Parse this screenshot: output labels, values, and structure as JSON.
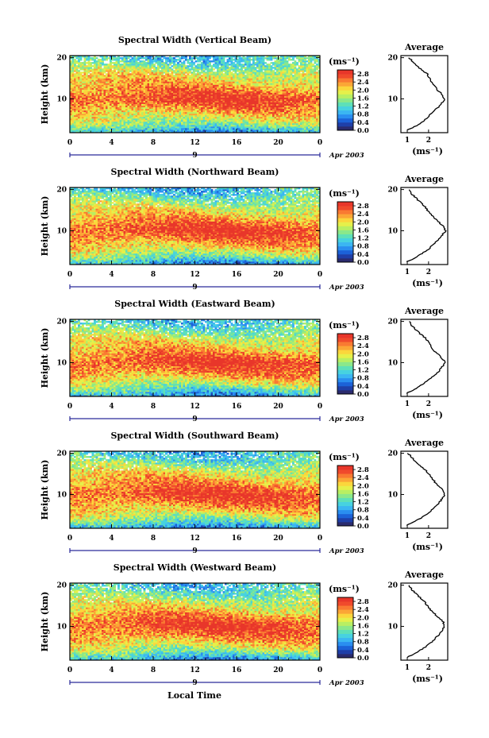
{
  "figure": {
    "xlabel": "Local Time",
    "date_label": "Apr 2003",
    "day_label": "9",
    "unit_label": "(ms⁻¹)",
    "average_title": "Average",
    "ylabel": "Height (km)"
  },
  "chart_data": [
    {
      "type": "heatmap",
      "title": "Spectral Width (Vertical Beam)",
      "xlabel": "Local Time",
      "ylabel": "Height (km)",
      "x_ticks": [
        "0",
        "4",
        "8",
        "12",
        "16",
        "20",
        "0"
      ],
      "xlim": [
        0,
        24
      ],
      "y_ticks": [
        "10",
        "20"
      ],
      "ylim": [
        1.8,
        20.5
      ],
      "colorbar": {
        "unit": "(ms⁻¹)",
        "ticks": [
          "2.8",
          "2.4",
          "2.0",
          "1.6",
          "1.2",
          "0.8",
          "0.4",
          "0.0"
        ],
        "range": [
          0.0,
          3.0
        ]
      },
      "profile": {
        "title": "Average",
        "xlabel": "(ms⁻¹)",
        "x_ticks": [
          "1",
          "2"
        ],
        "y_ticks": [
          "10",
          "20"
        ],
        "xlim": [
          0.7,
          2.9
        ],
        "height_km": [
          2.5,
          3,
          4,
          5,
          6,
          7,
          8,
          9,
          10,
          11,
          12,
          13,
          14,
          15,
          16,
          17,
          18,
          19,
          20
        ],
        "value": [
          1.0,
          1.25,
          1.6,
          1.85,
          2.05,
          2.25,
          2.45,
          2.62,
          2.75,
          2.65,
          2.45,
          2.3,
          2.15,
          2.05,
          1.95,
          1.7,
          1.45,
          1.25,
          1.1
        ]
      }
    },
    {
      "type": "heatmap",
      "title": "Spectral Width (Northward Beam)",
      "xlabel": "Local Time",
      "ylabel": "Height (km)",
      "x_ticks": [
        "0",
        "4",
        "8",
        "12",
        "16",
        "20",
        "0"
      ],
      "xlim": [
        0,
        24
      ],
      "y_ticks": [
        "10",
        "20"
      ],
      "ylim": [
        1.8,
        20.5
      ],
      "colorbar": {
        "unit": "(ms⁻¹)",
        "ticks": [
          "2.8",
          "2.4",
          "2.0",
          "1.6",
          "1.2",
          "0.8",
          "0.4",
          "0.0"
        ],
        "range": [
          0.0,
          3.0
        ]
      },
      "profile": {
        "title": "Average",
        "xlabel": "(ms⁻¹)",
        "x_ticks": [
          "1",
          "2"
        ],
        "y_ticks": [
          "10",
          "20"
        ],
        "xlim": [
          0.7,
          2.9
        ],
        "height_km": [
          2.5,
          3,
          4,
          5,
          6,
          7,
          8,
          9,
          10,
          11,
          12,
          13,
          14,
          15,
          16,
          17,
          18,
          19,
          20
        ],
        "value": [
          0.95,
          1.2,
          1.55,
          1.85,
          2.1,
          2.3,
          2.5,
          2.65,
          2.8,
          2.7,
          2.5,
          2.3,
          2.1,
          1.95,
          1.8,
          1.6,
          1.4,
          1.2,
          1.05
        ]
      }
    },
    {
      "type": "heatmap",
      "title": "Spectral Width (Eastward Beam)",
      "xlabel": "Local Time",
      "ylabel": "Height (km)",
      "x_ticks": [
        "0",
        "4",
        "8",
        "12",
        "16",
        "20",
        "0"
      ],
      "xlim": [
        0,
        24
      ],
      "y_ticks": [
        "10",
        "20"
      ],
      "ylim": [
        1.8,
        20.5
      ],
      "colorbar": {
        "unit": "(ms⁻¹)",
        "ticks": [
          "2.8",
          "2.4",
          "2.0",
          "1.6",
          "1.2",
          "0.8",
          "0.4",
          "0.0"
        ],
        "range": [
          0.0,
          3.0
        ]
      },
      "profile": {
        "title": "Average",
        "xlabel": "(ms⁻¹)",
        "x_ticks": [
          "1",
          "2"
        ],
        "y_ticks": [
          "10",
          "20"
        ],
        "xlim": [
          0.7,
          2.9
        ],
        "height_km": [
          2.5,
          3,
          4,
          5,
          6,
          7,
          8,
          9,
          10,
          11,
          12,
          13,
          14,
          15,
          16,
          17,
          18,
          19,
          20
        ],
        "value": [
          0.95,
          1.15,
          1.5,
          1.8,
          2.05,
          2.3,
          2.5,
          2.65,
          2.8,
          2.65,
          2.45,
          2.25,
          2.1,
          2.0,
          1.85,
          1.6,
          1.4,
          1.2,
          1.1
        ]
      }
    },
    {
      "type": "heatmap",
      "title": "Spectral Width (Southward Beam)",
      "xlabel": "Local Time",
      "ylabel": "Height (km)",
      "x_ticks": [
        "0",
        "4",
        "8",
        "12",
        "16",
        "20",
        "0"
      ],
      "xlim": [
        0,
        24
      ],
      "y_ticks": [
        "10",
        "20"
      ],
      "ylim": [
        1.8,
        20.5
      ],
      "colorbar": {
        "unit": "(ms⁻¹)",
        "ticks": [
          "2.8",
          "2.4",
          "2.0",
          "1.6",
          "1.2",
          "0.8",
          "0.4",
          "0.0"
        ],
        "range": [
          0.0,
          3.0
        ]
      },
      "profile": {
        "title": "Average",
        "xlabel": "(ms⁻¹)",
        "x_ticks": [
          "1",
          "2"
        ],
        "y_ticks": [
          "10",
          "20"
        ],
        "xlim": [
          0.7,
          2.9
        ],
        "height_km": [
          2.5,
          3,
          4,
          5,
          6,
          7,
          8,
          9,
          10,
          11,
          12,
          13,
          14,
          15,
          16,
          17,
          18,
          19,
          20
        ],
        "value": [
          0.95,
          1.2,
          1.55,
          1.85,
          2.1,
          2.3,
          2.5,
          2.65,
          2.75,
          2.7,
          2.5,
          2.3,
          2.15,
          2.0,
          1.85,
          1.6,
          1.4,
          1.2,
          1.05
        ]
      }
    },
    {
      "type": "heatmap",
      "title": "Spectral Width (Westward Beam)",
      "xlabel": "Local Time",
      "ylabel": "Height (km)",
      "x_ticks": [
        "0",
        "4",
        "8",
        "12",
        "16",
        "20",
        "0"
      ],
      "xlim": [
        0,
        24
      ],
      "y_ticks": [
        "10",
        "20"
      ],
      "ylim": [
        1.8,
        20.5
      ],
      "colorbar": {
        "unit": "(ms⁻¹)",
        "ticks": [
          "2.8",
          "2.4",
          "2.0",
          "1.6",
          "1.2",
          "0.8",
          "0.4",
          "0.0"
        ],
        "range": [
          0.0,
          3.0
        ]
      },
      "profile": {
        "title": "Average",
        "xlabel": "(ms⁻¹)",
        "x_ticks": [
          "1",
          "2"
        ],
        "y_ticks": [
          "10",
          "20"
        ],
        "xlim": [
          0.7,
          2.9
        ],
        "height_km": [
          2.5,
          3,
          4,
          5,
          6,
          7,
          8,
          9,
          10,
          11,
          12,
          13,
          14,
          15,
          16,
          17,
          18,
          19,
          20
        ],
        "value": [
          1.0,
          1.2,
          1.55,
          1.85,
          2.1,
          2.3,
          2.5,
          2.65,
          2.75,
          2.7,
          2.5,
          2.3,
          2.1,
          1.95,
          1.8,
          1.6,
          1.4,
          1.2,
          1.1
        ]
      }
    }
  ],
  "colors": {
    "colormap": [
      "#2b2b6e",
      "#1f3fa8",
      "#1c62d8",
      "#2a8ef0",
      "#3bb6f2",
      "#47d2e0",
      "#5ee0b8",
      "#8be88a",
      "#b9ef62",
      "#e6f04a",
      "#fbd63c",
      "#fba636",
      "#f97a32",
      "#f04a2c",
      "#e8362a"
    ]
  }
}
